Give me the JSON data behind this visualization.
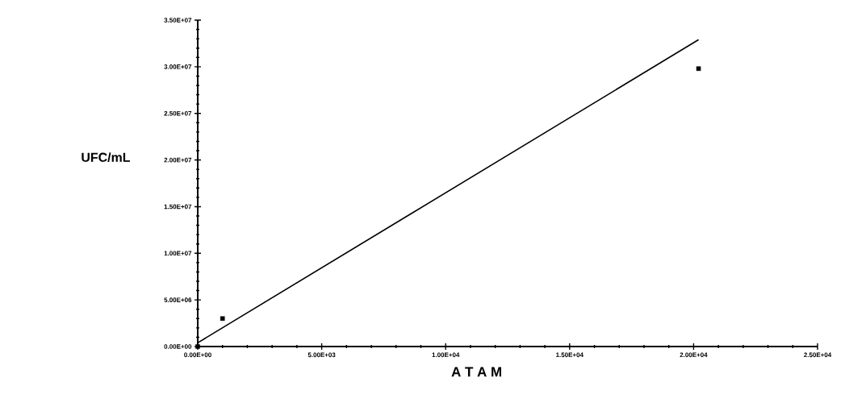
{
  "chart_data": {
    "type": "scatter",
    "xlabel": "A T A M",
    "ylabel": "UFC/mL",
    "series": [
      {
        "color": "#000000",
        "marker": "square",
        "x": [
          0,
          1000,
          20200
        ],
        "values": [
          0,
          3000000,
          29800000
        ]
      },
      {
        "type": "line",
        "color": "#000000",
        "marker": "none",
        "line_style": "solid",
        "x": [
          0,
          20200
        ],
        "values": [
          400000,
          32900000
        ]
      }
    ],
    "xlim": [
      0,
      25000
    ],
    "ylim": [
      0,
      35000000
    ],
    "xticks": [
      {
        "value": 0,
        "label": "0.00E+00"
      },
      {
        "value": 5000,
        "label": "5.00E+03"
      },
      {
        "value": 10000,
        "label": "1.00E+04"
      },
      {
        "value": 15000,
        "label": "1.50E+04"
      },
      {
        "value": 20000,
        "label": "2.00E+04"
      },
      {
        "value": 25000,
        "label": "2.50E+04"
      }
    ],
    "yticks": [
      {
        "value": 0,
        "label": "0.00E+00"
      },
      {
        "value": 5000000,
        "label": "5.00E+06"
      },
      {
        "value": 10000000,
        "label": "1.00E+07"
      },
      {
        "value": 15000000,
        "label": "1.50E+07"
      },
      {
        "value": 20000000,
        "label": "2.00E+07"
      },
      {
        "value": 25000000,
        "label": "2.50E+07"
      },
      {
        "value": 30000000,
        "label": "3.00E+07"
      },
      {
        "value": 35000000,
        "label": "3.50E+07"
      }
    ],
    "grid": false
  }
}
